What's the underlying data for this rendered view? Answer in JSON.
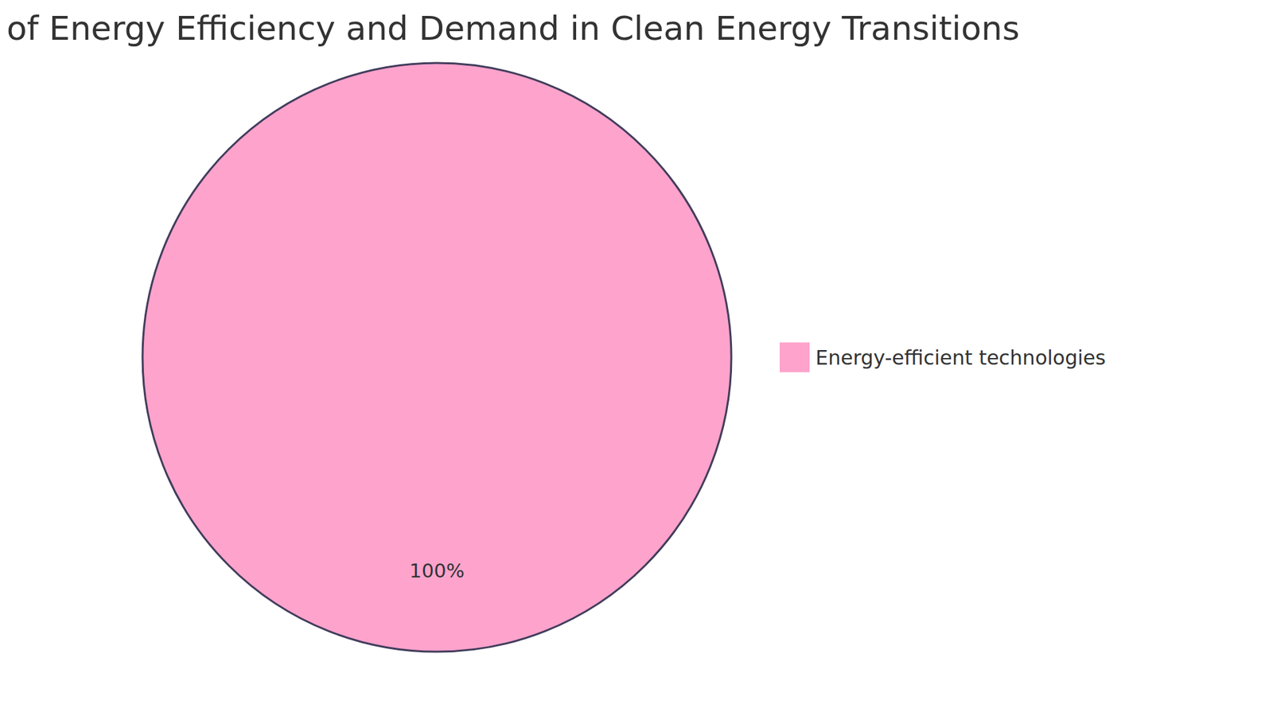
{
  "chart_data": {
    "type": "pie",
    "title": "of Energy Efficiency and Demand in Clean Energy Transitions",
    "categories": [
      "Energy-efficient technologies"
    ],
    "values": [
      100
    ],
    "value_labels": [
      "100%"
    ],
    "colors": [
      "#fea3cc"
    ],
    "data_labels": true,
    "legend": "right"
  }
}
